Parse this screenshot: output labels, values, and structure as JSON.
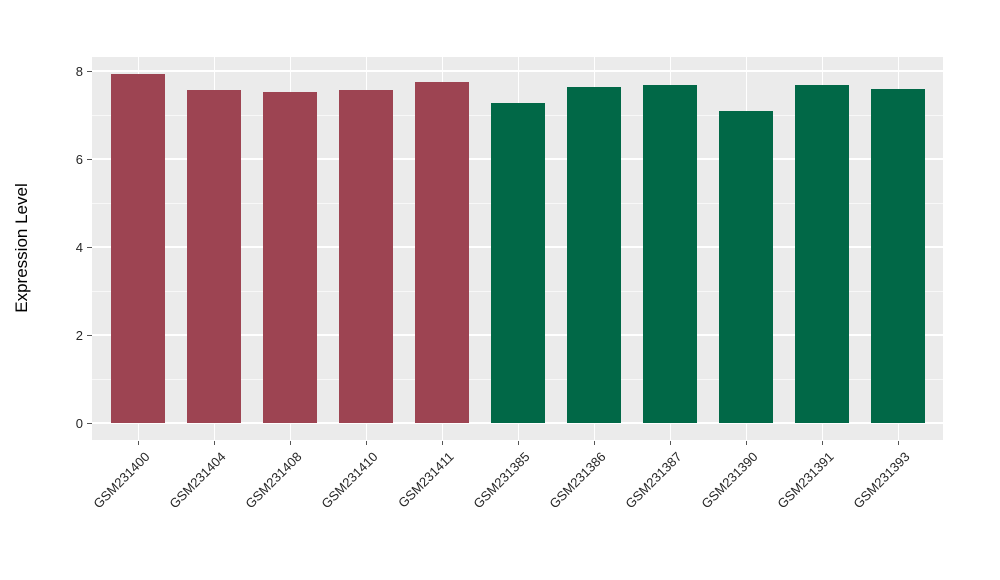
{
  "chart_data": {
    "type": "bar",
    "title": "",
    "xlabel": "",
    "ylabel": "Expression Level",
    "categories": [
      "GSM231400",
      "GSM231404",
      "GSM231408",
      "GSM231410",
      "GSM231411",
      "GSM231385",
      "GSM231386",
      "GSM231387",
      "GSM231390",
      "GSM231391",
      "GSM231393"
    ],
    "values": [
      7.93,
      7.57,
      7.53,
      7.57,
      7.75,
      7.27,
      7.64,
      7.68,
      7.09,
      7.68,
      7.6
    ],
    "bar_group_index": [
      0,
      0,
      0,
      0,
      0,
      1,
      1,
      1,
      1,
      1,
      1
    ],
    "group_colors": [
      "#9d4452",
      "#016847"
    ],
    "ylim": [
      -0.4,
      8.32
    ],
    "yticks_major": [
      0,
      2,
      4,
      6,
      8
    ],
    "yticks_minor": [
      1,
      3,
      5,
      7
    ],
    "grid": "on",
    "legend_position": "none",
    "panel_background": "#ebebeb",
    "grid_color": "#ffffff",
    "x_label_rotation_deg": 45
  }
}
